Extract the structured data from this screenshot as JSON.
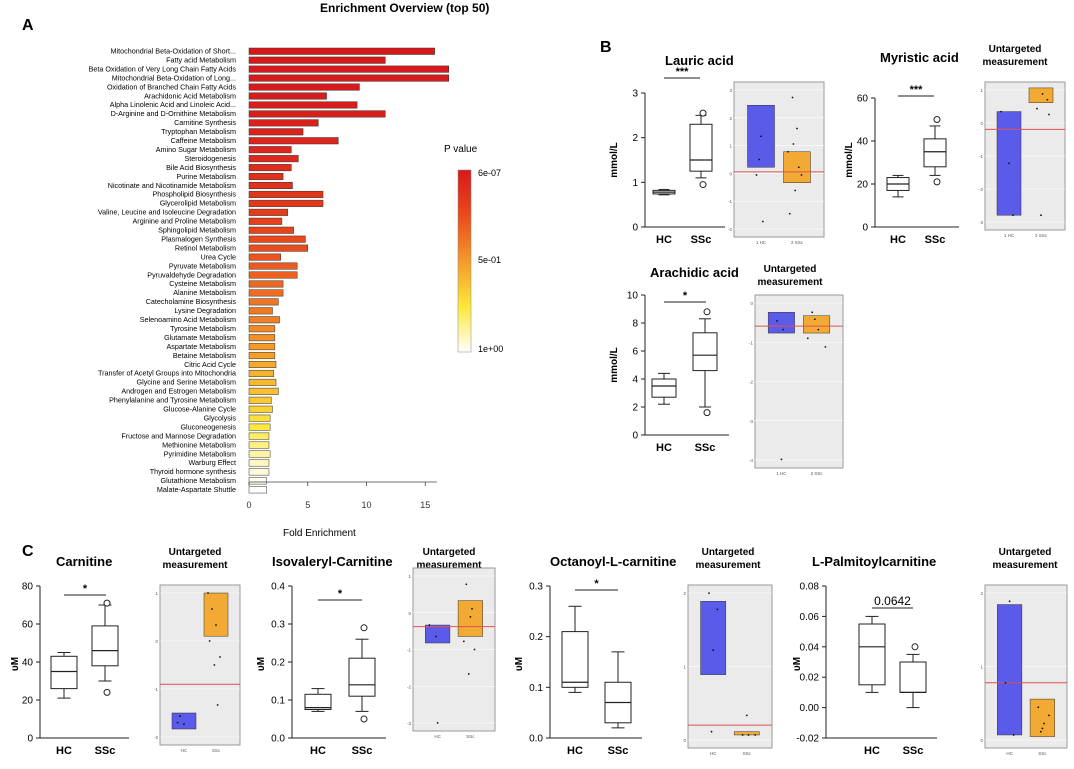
{
  "panel_labels": {
    "a": "A",
    "b": "B",
    "c": "C"
  },
  "chart_data": [
    {
      "id": "enrichment",
      "type": "bar",
      "orientation": "horizontal",
      "title": "Enrichment Overview (top 50)",
      "xlabel": "Fold Enrichment",
      "xlim": [
        0,
        17
      ],
      "xticks": [
        0,
        5,
        10,
        15
      ],
      "legend": {
        "title": "P value",
        "labels": [
          "6e-07",
          "5e-01",
          "1e+00"
        ],
        "position": "right"
      },
      "categories": [
        "Mitochondrial Beta-Oxidation of Short...",
        "Fatty acid Metabolism",
        "Beta Oxidation of Very Long Chain Fatty Acids",
        "Mitochondrial Beta-Oxidation of Long...",
        "Oxidation of Branched Chain Fatty Acids",
        "Arachidonic Acid Metabolism",
        "Alpha Linolenic Acid and Linoleic Acid...",
        "D-Arginine and D-Ornithine Metabolism",
        "Carnitine Synthesis",
        "Tryptophan Metabolism",
        "Caffeine Metabolism",
        "Amino Sugar Metabolism",
        "Steroidogenesis",
        "Bile Acid Biosynthesis",
        "Purine Metabolism",
        "Nicotinate and Nicotinamide Metabolism",
        "Phospholipid Biosynthesis",
        "Glycerolipid Metabolism",
        "Valine, Leucine and Isoleucine Degradation",
        "Arginine and Proline Metabolism",
        "Sphingolipid Metabolism",
        "Plasmalogen Synthesis",
        "Retinol Metabolism",
        "Urea Cycle",
        "Pyruvate Metabolism",
        "Pyruvaldehyde Degradation",
        "Cysteine Metabolism",
        "Alanine Metabolism",
        "Catecholamine Biosynthesis",
        "Lysine Degradation",
        "Selenoamino Acid Metabolism",
        "Tyrosine Metabolism",
        "Glutamate Metabolism",
        "Aspartate Metabolism",
        "Betaine Metabolism",
        "Citric Acid Cycle",
        "Transfer of Acetyl Groups into Mitochondria",
        "Glycine and Serine Metabolism",
        "Androgen and Estrogen Metabolism",
        "Phenylalanine and Tyrosine Metabolism",
        "Glucose-Alanine Cycle",
        "Glycolysis",
        "Gluconeogenesis",
        "Fructose and Mannose Degradation",
        "Methionine Metabolism",
        "Pyrimidine Metabolism",
        "Warburg Effect",
        "Thyroid hormone synthesis",
        "Glutathione Metabolism",
        "Malate-Aspartate Shuttle"
      ],
      "values": [
        15.8,
        11.6,
        17.0,
        17.0,
        9.4,
        6.6,
        9.2,
        11.6,
        5.9,
        4.6,
        7.6,
        3.6,
        4.2,
        3.6,
        2.9,
        3.7,
        6.3,
        6.3,
        3.3,
        2.8,
        3.8,
        4.8,
        5.0,
        2.7,
        4.1,
        4.1,
        2.9,
        2.9,
        2.5,
        2.0,
        2.6,
        2.2,
        2.2,
        2.2,
        2.2,
        2.3,
        2.1,
        2.3,
        2.5,
        1.9,
        2.0,
        1.8,
        1.8,
        1.7,
        1.7,
        1.8,
        1.7,
        1.7,
        1.5,
        1.5
      ],
      "pvalues": [
        6e-07,
        0.001,
        0.002,
        0.003,
        0.005,
        0.01,
        0.02,
        0.03,
        0.04,
        0.05,
        0.06,
        0.07,
        0.08,
        0.1,
        0.12,
        0.13,
        0.15,
        0.16,
        0.18,
        0.2,
        0.22,
        0.24,
        0.26,
        0.28,
        0.3,
        0.32,
        0.34,
        0.36,
        0.38,
        0.4,
        0.42,
        0.45,
        0.47,
        0.5,
        0.52,
        0.55,
        0.58,
        0.6,
        0.62,
        0.65,
        0.68,
        0.72,
        0.76,
        0.8,
        0.84,
        0.88,
        0.92,
        0.95,
        0.98,
        1.0
      ]
    },
    {
      "id": "lauric",
      "type": "box",
      "title": "Lauric acid",
      "ylabel": "mmol/L",
      "ylim": [
        0,
        3
      ],
      "yticks": [
        0,
        1,
        2,
        3
      ],
      "categories": [
        "HC",
        "SSc"
      ],
      "significance": "***",
      "boxes": [
        {
          "min": 0.72,
          "q1": 0.74,
          "median": 0.78,
          "q3": 0.82,
          "max": 0.84,
          "outliers": []
        },
        {
          "min": 1.1,
          "q1": 1.25,
          "median": 1.5,
          "q3": 2.3,
          "max": 2.5,
          "outliers": [
            2.55,
            0.95
          ]
        }
      ]
    },
    {
      "id": "myristic",
      "type": "box",
      "title": "Myristic acid",
      "ylabel": "mmol/L",
      "ylim": [
        0,
        60
      ],
      "yticks": [
        0,
        20,
        40,
        60
      ],
      "categories": [
        "HC",
        "SSc"
      ],
      "significance": "***",
      "boxes": [
        {
          "min": 14,
          "q1": 17,
          "median": 20,
          "q3": 23,
          "max": 24,
          "outliers": []
        },
        {
          "min": 24,
          "q1": 28,
          "median": 35,
          "q3": 41,
          "max": 47,
          "outliers": [
            50,
            21
          ]
        }
      ]
    },
    {
      "id": "arachidic",
      "type": "box",
      "title": "Arachidic acid",
      "ylabel": "mmol/L",
      "ylim": [
        0,
        10
      ],
      "yticks": [
        0,
        2,
        4,
        6,
        8,
        10
      ],
      "categories": [
        "HC",
        "SSc"
      ],
      "significance": "*",
      "boxes": [
        {
          "min": 2.2,
          "q1": 2.7,
          "median": 3.5,
          "q3": 4.0,
          "max": 4.4,
          "outliers": []
        },
        {
          "min": 2.0,
          "q1": 4.6,
          "median": 5.7,
          "q3": 7.3,
          "max": 8.3,
          "outliers": [
            8.8,
            1.6
          ]
        }
      ]
    },
    {
      "id": "carnitine",
      "type": "box",
      "title": "Carnitine",
      "ylabel": "υM",
      "ylim": [
        0,
        80
      ],
      "yticks": [
        0,
        20,
        40,
        60,
        80
      ],
      "categories": [
        "HC",
        "SSc"
      ],
      "significance": "*",
      "boxes": [
        {
          "min": 21,
          "q1": 26,
          "median": 35,
          "q3": 43,
          "max": 45,
          "outliers": []
        },
        {
          "min": 30,
          "q1": 38,
          "median": 46,
          "q3": 59,
          "max": 70,
          "outliers": [
            71,
            24
          ]
        }
      ]
    },
    {
      "id": "isovaleryl",
      "type": "box",
      "title": "Isovaleryl-Carnitine",
      "ylabel": "υM",
      "ylim": [
        0,
        0.4
      ],
      "yticks": [
        0,
        0.1,
        0.2,
        0.3,
        0.4
      ],
      "categories": [
        "HC",
        "SSc"
      ],
      "significance": "*",
      "boxes": [
        {
          "min": 0.07,
          "q1": 0.075,
          "median": 0.08,
          "q3": 0.115,
          "max": 0.13,
          "outliers": []
        },
        {
          "min": 0.07,
          "q1": 0.11,
          "median": 0.14,
          "q3": 0.21,
          "max": 0.26,
          "outliers": [
            0.29,
            0.05
          ]
        }
      ]
    },
    {
      "id": "octanoyl",
      "type": "box",
      "title": "Octanoyl-L-carnitine",
      "ylabel": "υM",
      "ylim": [
        0,
        0.3
      ],
      "yticks": [
        0,
        0.1,
        0.2,
        0.3
      ],
      "categories": [
        "HC",
        "SSc"
      ],
      "significance": "*",
      "boxes": [
        {
          "min": 0.09,
          "q1": 0.1,
          "median": 0.11,
          "q3": 0.21,
          "max": 0.26,
          "outliers": []
        },
        {
          "min": 0.02,
          "q1": 0.03,
          "median": 0.07,
          "q3": 0.11,
          "max": 0.17,
          "outliers": []
        }
      ]
    },
    {
      "id": "palmitoyl",
      "type": "box",
      "title": "L-Palmitoylcarnitine",
      "ylabel": "υM",
      "ylim": [
        -0.02,
        0.08
      ],
      "yticks": [
        -0.02,
        0,
        0.02,
        0.04,
        0.06,
        0.08
      ],
      "categories": [
        "HC",
        "SSc"
      ],
      "significance": "0.0642",
      "boxes": [
        {
          "min": 0.01,
          "q1": 0.015,
          "median": 0.04,
          "q3": 0.055,
          "max": 0.06,
          "outliers": []
        },
        {
          "min": 0.0,
          "q1": 0.01,
          "median": 0.01,
          "q3": 0.03,
          "max": 0.035,
          "outliers": [
            0.04
          ]
        }
      ]
    }
  ],
  "untargeted_insets": [
    {
      "id": "lauric",
      "title": "Untargeted measurement",
      "yticks": [
        "3",
        "2",
        "1",
        "0",
        "-1",
        "-2"
      ],
      "xticks": [
        "1 HC",
        "2 SSc"
      ]
    },
    {
      "id": "myristic",
      "title": "Untargeted measurement",
      "yticks": [
        "1",
        "0",
        "-1",
        "-2",
        "-3"
      ],
      "xticks": [
        "1 HC",
        "2 SSc"
      ]
    },
    {
      "id": "arachidic",
      "title": "Untargeted measurement",
      "yticks": [
        "0",
        "-1",
        "-2",
        "-3",
        "-4"
      ],
      "xticks": [
        "1 HC",
        "2 SSc"
      ]
    },
    {
      "id": "carnitine",
      "title": "Untargeted measurement",
      "yticks": [
        "1",
        "0",
        "-1",
        "-2"
      ],
      "xticks": [
        "HC",
        "SSc"
      ]
    },
    {
      "id": "isovaleryl",
      "title": "Untargeted measurement",
      "yticks": [
        "1",
        "0",
        "-1",
        "-2",
        "-3"
      ],
      "xticks": [
        "HC",
        "SSc"
      ]
    },
    {
      "id": "octanoyl",
      "title": "Untargeted measurement",
      "yticks": [
        "2",
        "1",
        "0"
      ],
      "xticks": [
        "HC",
        "SSc"
      ]
    },
    {
      "id": "palmitoyl",
      "title": "Untargeted measurement",
      "yticks": [
        "2",
        "1",
        "0"
      ],
      "xticks": [
        "HC",
        "SSc"
      ]
    }
  ],
  "colors": {
    "hc_box": "#5b5bea",
    "ssc_box": "#f3aa35",
    "reference_line": "#e05050",
    "inset_bg": "#ebebeb"
  }
}
